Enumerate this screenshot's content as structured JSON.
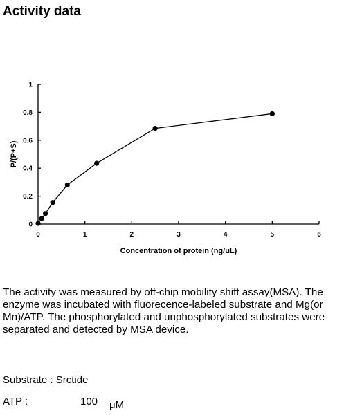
{
  "page": {
    "heading": "Activity data",
    "description": "The activity was measured by off-chip mobility shift assay(MSA). The enzyme was incubated with fluorecence-labeled  substrate and Mg(or Mn)/ATP. The phosphorylated and unphosphorylated substrates were separated and detected by MSA device.",
    "substrate_label": "Substrate : Srctide",
    "atp_label": "ATP :",
    "atp_value": "100",
    "atp_unit": "μM"
  },
  "chart_data": {
    "type": "line",
    "title": "",
    "xlabel": "Concentration of protein (ng/uL)",
    "ylabel": "P/(P+S)",
    "xlim": [
      0,
      6
    ],
    "ylim": [
      0,
      1
    ],
    "x_ticks": [
      0,
      1,
      2,
      3,
      4,
      5,
      6
    ],
    "y_ticks": [
      0,
      0.2,
      0.4,
      0.6,
      0.8,
      1
    ],
    "x_tick_labels": [
      "0",
      "1",
      "2",
      "3",
      "4",
      "5",
      "6"
    ],
    "y_tick_labels": [
      "0",
      "0.2",
      "0.4",
      "0.6",
      "0.8",
      "1"
    ],
    "grid": false,
    "legend": false,
    "line_color": "#000000",
    "marker": "filled-circle",
    "series": [
      {
        "x": [
          0,
          0.078,
          0.156,
          0.3125,
          0.625,
          1.25,
          2.5,
          5
        ],
        "y": [
          0.005,
          0.04,
          0.075,
          0.155,
          0.28,
          0.435,
          0.685,
          0.79
        ]
      }
    ]
  }
}
